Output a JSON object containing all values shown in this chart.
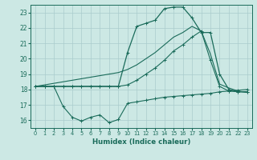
{
  "title": "",
  "xlabel": "Humidex (Indice chaleur)",
  "bg_color": "#cce8e4",
  "grid_color": "#aacccc",
  "line_color": "#1a6b5a",
  "xlim": [
    -0.5,
    23.5
  ],
  "ylim": [
    15.5,
    23.5
  ],
  "xticks": [
    0,
    1,
    2,
    3,
    4,
    5,
    6,
    7,
    8,
    9,
    10,
    11,
    12,
    13,
    14,
    15,
    16,
    17,
    18,
    19,
    20,
    21,
    22,
    23
  ],
  "yticks": [
    16,
    17,
    18,
    19,
    20,
    21,
    22,
    23
  ],
  "curve_peaked_x": [
    0,
    1,
    2,
    3,
    4,
    5,
    6,
    7,
    8,
    9,
    10,
    11,
    12,
    13,
    14,
    15,
    16,
    17,
    18,
    19,
    20,
    21,
    22,
    23
  ],
  "curve_peaked_y": [
    18.2,
    18.2,
    18.2,
    18.2,
    18.2,
    18.2,
    18.2,
    18.2,
    18.2,
    18.2,
    20.4,
    22.1,
    22.3,
    22.5,
    23.25,
    23.35,
    23.35,
    22.65,
    21.7,
    21.7,
    19.0,
    18.0,
    17.85,
    17.85
  ],
  "curve_diag_x": [
    0,
    1,
    2,
    3,
    4,
    5,
    6,
    7,
    8,
    9,
    10,
    11,
    12,
    13,
    14,
    15,
    16,
    17,
    18,
    19,
    20,
    21,
    22,
    23
  ],
  "curve_diag_y": [
    18.2,
    18.3,
    18.4,
    18.5,
    18.6,
    18.7,
    18.8,
    18.9,
    19.0,
    19.1,
    19.3,
    19.6,
    20.0,
    20.4,
    20.9,
    21.4,
    21.7,
    22.1,
    21.8,
    20.3,
    18.35,
    18.1,
    17.9,
    17.8
  ],
  "curve_mid_x": [
    0,
    1,
    2,
    3,
    4,
    5,
    6,
    7,
    8,
    9,
    10,
    11,
    12,
    13,
    14,
    15,
    16,
    17,
    18,
    19,
    20,
    21,
    22,
    23
  ],
  "curve_mid_y": [
    18.2,
    18.2,
    18.2,
    18.2,
    18.2,
    18.2,
    18.2,
    18.2,
    18.2,
    18.2,
    18.3,
    18.6,
    19.0,
    19.4,
    19.9,
    20.5,
    20.9,
    21.4,
    21.8,
    19.9,
    18.2,
    17.9,
    17.85,
    17.85
  ],
  "curve_low_x": [
    0,
    1,
    2,
    3,
    4,
    5,
    6,
    7,
    8,
    9,
    10,
    11,
    12,
    13,
    14,
    15,
    16,
    17,
    18,
    19,
    20,
    21,
    22,
    23
  ],
  "curve_low_y": [
    18.2,
    18.2,
    18.2,
    16.9,
    16.2,
    15.95,
    16.2,
    16.35,
    15.85,
    16.05,
    17.1,
    17.2,
    17.3,
    17.4,
    17.5,
    17.55,
    17.6,
    17.65,
    17.7,
    17.75,
    17.85,
    17.9,
    17.95,
    18.0
  ]
}
